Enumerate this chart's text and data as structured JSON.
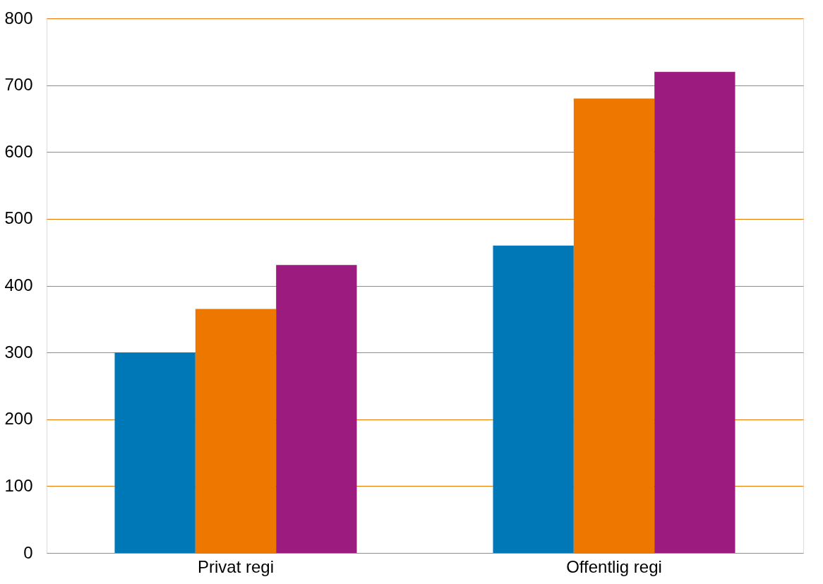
{
  "chart_data": {
    "type": "bar",
    "categories": [
      "Privat regi",
      "Offentlig regi"
    ],
    "series": [
      {
        "color": "#0077b6",
        "values": [
          300,
          460
        ]
      },
      {
        "color": "#ee7700",
        "values": [
          365,
          680
        ]
      },
      {
        "color": "#9b1b7e",
        "values": [
          431,
          720
        ]
      }
    ],
    "ylim": [
      0,
      800
    ],
    "yticks": [
      0,
      100,
      200,
      300,
      400,
      500,
      600,
      700,
      800
    ],
    "grid": "y",
    "legend": false
  }
}
